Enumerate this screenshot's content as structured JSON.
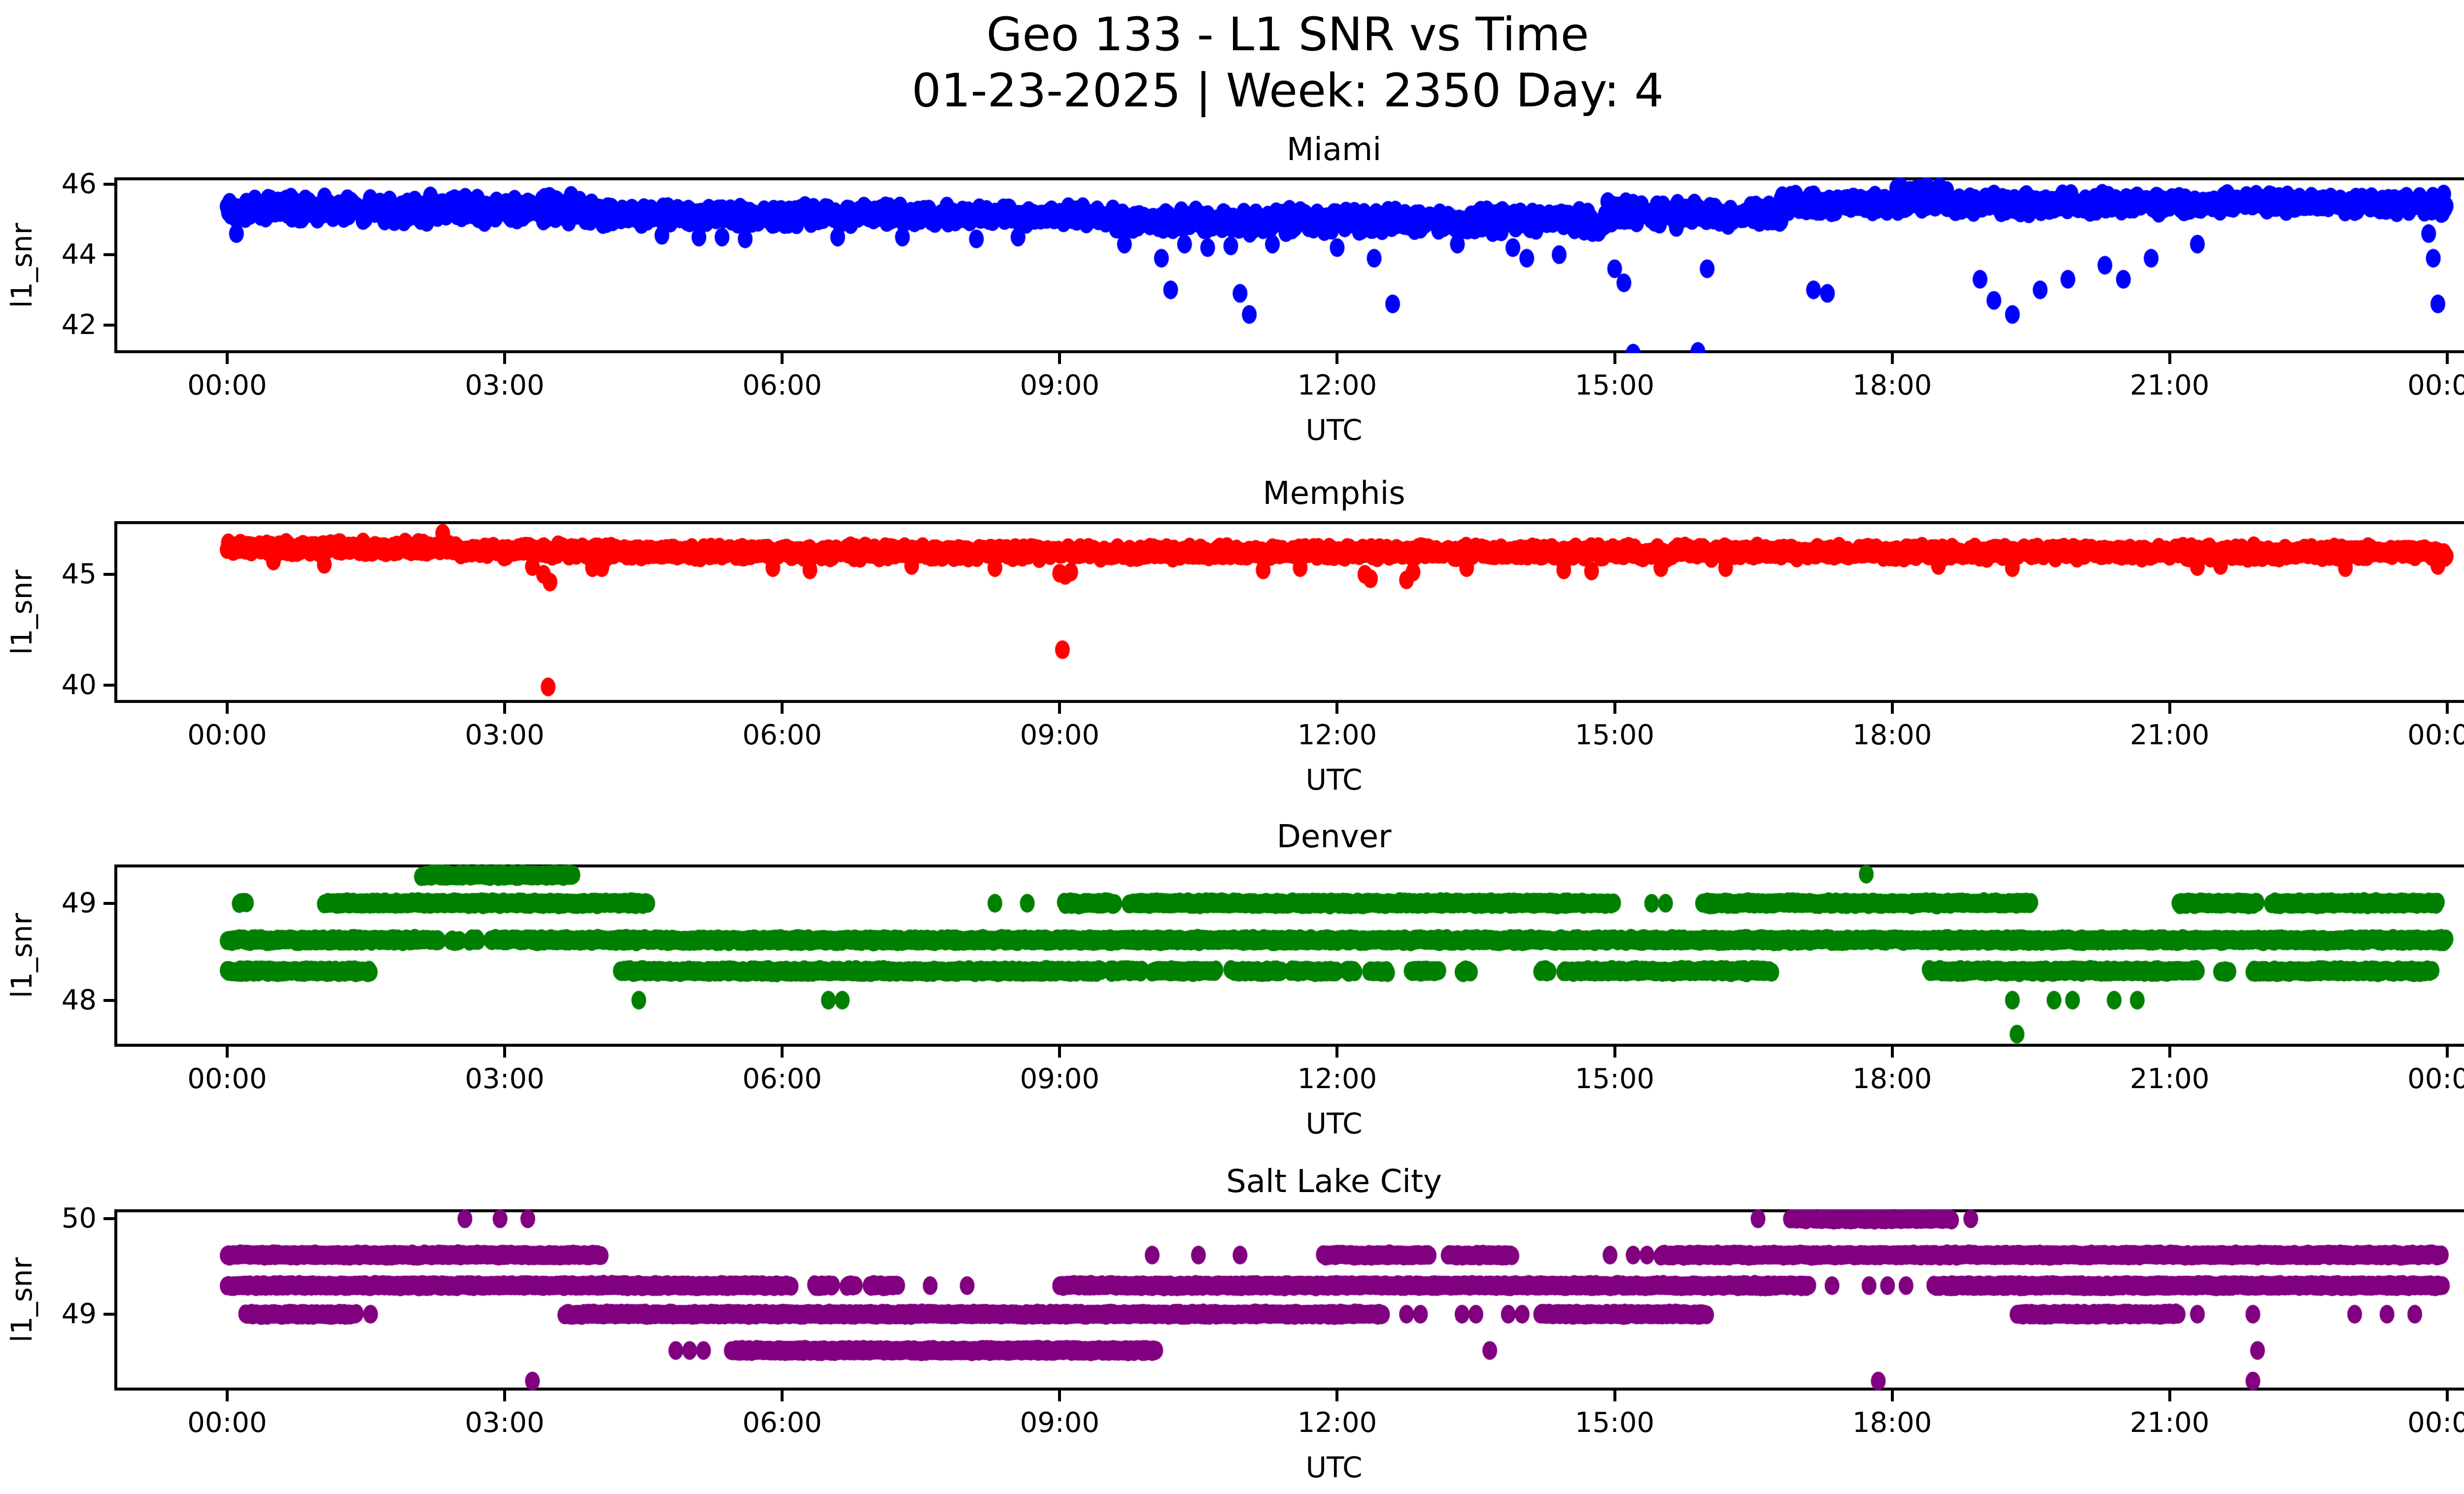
{
  "title": {
    "line1": "Geo 133 - L1 SNR vs Time",
    "line2": "01-23-2025 | Week: 2350 Day: 4"
  },
  "x_axis": {
    "label": "UTC",
    "tick_hours": [
      0,
      3,
      6,
      9,
      12,
      15,
      18,
      21,
      24
    ],
    "tick_labels": [
      "00:00",
      "03:00",
      "06:00",
      "09:00",
      "12:00",
      "15:00",
      "18:00",
      "21:00",
      "00:00"
    ]
  },
  "colors": {
    "background": "#ffffff",
    "axes": "#000000",
    "miami": "#0000ff",
    "memphis": "#ff0000",
    "denver": "#008000",
    "salt_lake_city": "#800080"
  },
  "chart_data": [
    {
      "type": "scatter",
      "name": "miami",
      "title": "Miami",
      "ylabel": "l1_snr",
      "color": "#0000ff",
      "ylim": [
        41.2,
        46.2
      ],
      "yticks": [
        46,
        44,
        42
      ],
      "x_range_hours": [
        0,
        24
      ],
      "bands": [
        {
          "y": 45.3,
          "spread": 0.42,
          "step": 0.013,
          "segments": [
            [
              0,
              4.05
            ]
          ]
        },
        {
          "y": 45.12,
          "spread": 0.3,
          "step": 0.013,
          "segments": [
            [
              4.05,
              9.6
            ]
          ]
        },
        {
          "y": 44.95,
          "spread": 0.38,
          "step": 0.013,
          "segments": [
            [
              9.6,
              14.9
            ]
          ]
        },
        {
          "y": 45.15,
          "spread": 0.38,
          "step": 0.013,
          "segments": [
            [
              14.9,
              16.8
            ]
          ]
        },
        {
          "y": 45.45,
          "spread": 0.3,
          "step": 0.013,
          "segments": [
            [
              16.8,
              24
            ]
          ]
        },
        {
          "y": 45.85,
          "spread": 0.15,
          "step": 0.02,
          "segments": [
            [
              18.05,
              18.6
            ]
          ]
        }
      ],
      "dots": [
        [
          0.1,
          44.6
        ],
        [
          4.7,
          44.55
        ],
        [
          5.1,
          44.5
        ],
        [
          5.35,
          44.5
        ],
        [
          5.6,
          44.45
        ],
        [
          6.6,
          44.5
        ],
        [
          7.3,
          44.5
        ],
        [
          8.1,
          44.45
        ],
        [
          8.55,
          44.5
        ],
        [
          9.7,
          44.3
        ],
        [
          10.1,
          43.9
        ],
        [
          10.35,
          44.3
        ],
        [
          10.6,
          44.2
        ],
        [
          10.85,
          44.25
        ],
        [
          11.3,
          44.3
        ],
        [
          12.0,
          44.2
        ],
        [
          12.4,
          43.9
        ],
        [
          13.3,
          44.3
        ],
        [
          13.9,
          44.2
        ],
        [
          14.05,
          43.9
        ],
        [
          14.4,
          44.0
        ],
        [
          15.0,
          43.6
        ],
        [
          15.1,
          43.2
        ],
        [
          16.0,
          43.6
        ],
        [
          17.15,
          43.0
        ],
        [
          17.3,
          42.9
        ],
        [
          18.95,
          43.3
        ],
        [
          19.1,
          42.7
        ],
        [
          19.3,
          42.3
        ],
        [
          19.6,
          43.0
        ],
        [
          19.9,
          43.3
        ],
        [
          20.3,
          43.7
        ],
        [
          20.5,
          43.3
        ],
        [
          20.8,
          43.9
        ],
        [
          21.3,
          44.3
        ],
        [
          23.8,
          44.6
        ],
        [
          23.85,
          43.9
        ],
        [
          10.2,
          43.0
        ],
        [
          10.95,
          42.9
        ],
        [
          11.05,
          42.3
        ],
        [
          12.6,
          42.6
        ],
        [
          15.2,
          41.2
        ],
        [
          15.9,
          41.25
        ],
        [
          23.9,
          42.6
        ]
      ]
    },
    {
      "type": "scatter",
      "name": "memphis",
      "title": "Memphis",
      "ylabel": "l1_snr",
      "color": "#ff0000",
      "ylim": [
        39.2,
        47.4
      ],
      "yticks": [
        45,
        40
      ],
      "x_range_hours": [
        0,
        24
      ],
      "bands": [
        {
          "y": 46.2,
          "spread": 0.28,
          "step": 0.013,
          "segments": [
            [
              0,
              2.5
            ]
          ]
        },
        {
          "y": 46.05,
          "spread": 0.3,
          "step": 0.013,
          "segments": [
            [
              2.5,
              4.1
            ]
          ]
        },
        {
          "y": 46.0,
          "spread": 0.3,
          "step": 0.013,
          "segments": [
            [
              4.1,
              24
            ]
          ]
        }
      ],
      "dots": [
        [
          2.33,
          46.85
        ],
        [
          0.5,
          45.6
        ],
        [
          1.05,
          45.45
        ],
        [
          3.3,
          45.35
        ],
        [
          3.42,
          45.0
        ],
        [
          3.49,
          44.65
        ],
        [
          3.95,
          45.3
        ],
        [
          4.05,
          45.3
        ],
        [
          5.9,
          45.3
        ],
        [
          6.3,
          45.2
        ],
        [
          7.4,
          45.4
        ],
        [
          8.3,
          45.3
        ],
        [
          9.0,
          45.05
        ],
        [
          9.06,
          44.95
        ],
        [
          9.12,
          45.1
        ],
        [
          11.2,
          45.2
        ],
        [
          11.6,
          45.3
        ],
        [
          12.3,
          45.0
        ],
        [
          12.36,
          44.8
        ],
        [
          12.75,
          44.75
        ],
        [
          12.82,
          45.1
        ],
        [
          13.4,
          45.3
        ],
        [
          14.45,
          45.2
        ],
        [
          14.75,
          45.15
        ],
        [
          15.5,
          45.3
        ],
        [
          16.2,
          45.3
        ],
        [
          18.5,
          45.4
        ],
        [
          19.3,
          45.3
        ],
        [
          21.3,
          45.35
        ],
        [
          21.55,
          45.4
        ],
        [
          22.9,
          45.3
        ],
        [
          23.9,
          45.4
        ],
        [
          3.47,
          39.92
        ],
        [
          9.03,
          41.6
        ]
      ]
    },
    {
      "type": "scatter",
      "name": "denver",
      "title": "Denver",
      "ylabel": "l1_snr",
      "color": "#008000",
      "ylim": [
        47.52,
        49.4
      ],
      "yticks": [
        49,
        48
      ],
      "x_range_hours": [
        0,
        24
      ],
      "bands": [
        {
          "y": 49.29,
          "spread": 0.02,
          "step": 0.013,
          "segments": [
            [
              2.1,
              3.75
            ]
          ]
        },
        {
          "y": 49.0,
          "spread": 0.02,
          "step": 0.013,
          "segments": [
            [
              0.13,
              0.22
            ],
            [
              1.05,
              4.55
            ],
            [
              9.05,
              9.6
            ],
            [
              9.75,
              15.0
            ],
            [
              15.95,
              19.5
            ],
            [
              21.1,
              21.95
            ],
            [
              22.1,
              23.9
            ]
          ]
        },
        {
          "y": 48.62,
          "spread": 0.02,
          "step": 0.013,
          "segments": [
            [
              0,
              2.3
            ],
            [
              2.42,
              2.52
            ],
            [
              2.62,
              2.72
            ],
            [
              2.85,
              24
            ]
          ]
        },
        {
          "y": 48.3,
          "spread": 0.02,
          "step": 0.013,
          "segments": [
            [
              0,
              1.55
            ],
            [
              4.25,
              9.45
            ],
            [
              9.55,
              9.9
            ],
            [
              10.0,
              10.7
            ],
            [
              10.85,
              11.4
            ],
            [
              11.5,
              12.0
            ],
            [
              12.1,
              12.2
            ],
            [
              12.35,
              12.55
            ],
            [
              12.8,
              13.1
            ],
            [
              13.35,
              13.45
            ],
            [
              14.2,
              14.3
            ],
            [
              14.45,
              16.7
            ],
            [
              18.4,
              21.3
            ],
            [
              21.55,
              21.65
            ],
            [
              21.9,
              23.85
            ]
          ]
        }
      ],
      "dots": [
        [
          17.72,
          49.3
        ],
        [
          8.3,
          49.0
        ],
        [
          8.65,
          49.0
        ],
        [
          15.4,
          49.0
        ],
        [
          15.55,
          49.0
        ],
        [
          4.45,
          48.0
        ],
        [
          6.5,
          48.0
        ],
        [
          6.65,
          48.0
        ],
        [
          19.3,
          48.0
        ],
        [
          19.75,
          48.0
        ],
        [
          19.95,
          48.0
        ],
        [
          20.4,
          48.0
        ],
        [
          20.65,
          48.0
        ],
        [
          19.35,
          47.65
        ]
      ]
    },
    {
      "type": "scatter",
      "name": "salt-lake-city",
      "title": "Salt Lake City",
      "ylabel": "l1_snr",
      "color": "#800080",
      "ylim": [
        48.2,
        50.1
      ],
      "yticks": [
        50,
        49
      ],
      "x_range_hours": [
        0,
        24
      ],
      "bands": [
        {
          "y": 50.0,
          "spread": 0.015,
          "step": 0.013,
          "segments": [
            [
              16.9,
              18.65
            ]
          ]
        },
        {
          "y": 49.62,
          "spread": 0.015,
          "step": 0.013,
          "segments": [
            [
              0,
              4.05
            ],
            [
              11.85,
              13.0
            ],
            [
              13.2,
              13.9
            ],
            [
              15.5,
              23.95
            ]
          ]
        },
        {
          "y": 49.3,
          "spread": 0.015,
          "step": 0.013,
          "segments": [
            [
              0,
              6.1
            ],
            [
              6.35,
              6.55
            ],
            [
              6.7,
              6.8
            ],
            [
              6.95,
              7.25
            ],
            [
              9.0,
              17.1
            ],
            [
              18.45,
              23.95
            ]
          ]
        },
        {
          "y": 49.0,
          "spread": 0.015,
          "step": 0.013,
          "segments": [
            [
              0.2,
              1.4
            ],
            [
              3.65,
              12.5
            ],
            [
              14.2,
              16.0
            ],
            [
              19.35,
              21.1
            ]
          ]
        },
        {
          "y": 48.62,
          "spread": 0.015,
          "step": 0.013,
          "segments": [
            [
              5.45,
              10.05
            ]
          ]
        }
      ],
      "dots": [
        [
          2.57,
          50.0
        ],
        [
          2.95,
          50.0
        ],
        [
          3.25,
          50.0
        ],
        [
          16.55,
          50.0
        ],
        [
          18.85,
          50.0
        ],
        [
          10.0,
          49.62
        ],
        [
          10.5,
          49.62
        ],
        [
          10.95,
          49.62
        ],
        [
          14.95,
          49.62
        ],
        [
          15.2,
          49.62
        ],
        [
          15.35,
          49.62
        ],
        [
          7.6,
          49.3
        ],
        [
          8.0,
          49.3
        ],
        [
          17.35,
          49.3
        ],
        [
          17.75,
          49.3
        ],
        [
          17.95,
          49.3
        ],
        [
          18.15,
          49.3
        ],
        [
          1.55,
          49.0
        ],
        [
          12.75,
          49.0
        ],
        [
          12.9,
          49.0
        ],
        [
          13.35,
          49.0
        ],
        [
          13.5,
          49.0
        ],
        [
          13.85,
          49.0
        ],
        [
          14.0,
          49.0
        ],
        [
          21.3,
          49.0
        ],
        [
          21.9,
          49.0
        ],
        [
          23.0,
          49.0
        ],
        [
          23.35,
          49.0
        ],
        [
          23.65,
          49.0
        ],
        [
          4.85,
          48.62
        ],
        [
          5.0,
          48.62
        ],
        [
          5.15,
          48.62
        ],
        [
          13.65,
          48.62
        ],
        [
          21.95,
          48.62
        ],
        [
          3.3,
          48.3
        ],
        [
          17.85,
          48.3
        ],
        [
          21.9,
          48.3
        ]
      ]
    }
  ]
}
